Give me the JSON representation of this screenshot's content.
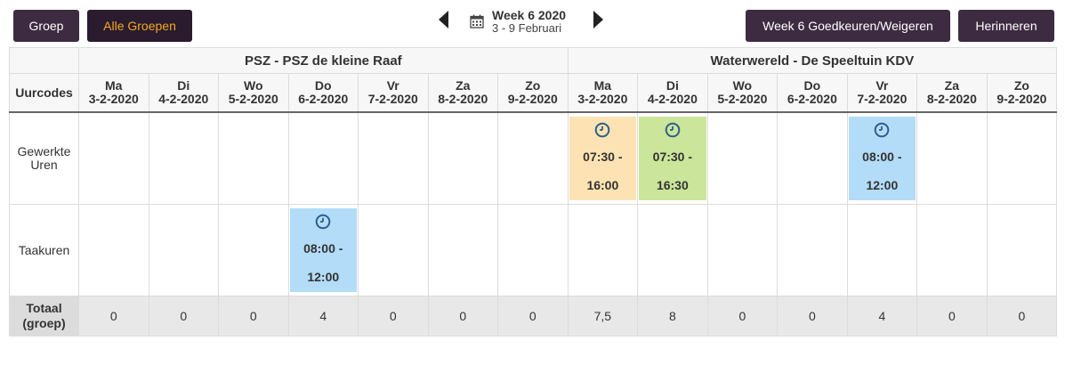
{
  "toolbar": {
    "groep": "Groep",
    "alle_groepen": "Alle Groepen",
    "goedkeuren": "Week 6 Goedkeuren/Weigeren",
    "herinneren": "Herinneren"
  },
  "week": {
    "title": "Week 6 2020",
    "range": "3 - 9 Februari"
  },
  "groups": [
    {
      "name": "PSZ - PSZ de kleine Raaf"
    },
    {
      "name": "Waterwereld - De Speeltuin KDV"
    }
  ],
  "row_header": "Uurcodes",
  "days": [
    {
      "day": "Ma",
      "date": "3-2-2020"
    },
    {
      "day": "Di",
      "date": "4-2-2020"
    },
    {
      "day": "Wo",
      "date": "5-2-2020"
    },
    {
      "day": "Do",
      "date": "6-2-2020"
    },
    {
      "day": "Vr",
      "date": "7-2-2020"
    },
    {
      "day": "Za",
      "date": "8-2-2020"
    },
    {
      "day": "Zo",
      "date": "9-2-2020"
    },
    {
      "day": "Ma",
      "date": "3-2-2020"
    },
    {
      "day": "Di",
      "date": "4-2-2020"
    },
    {
      "day": "Wo",
      "date": "5-2-2020"
    },
    {
      "day": "Do",
      "date": "6-2-2020"
    },
    {
      "day": "Vr",
      "date": "7-2-2020"
    },
    {
      "day": "Za",
      "date": "8-2-2020"
    },
    {
      "day": "Zo",
      "date": "9-2-2020"
    }
  ],
  "rows": {
    "gewerkte": {
      "line1": "Gewerkte",
      "line2": "Uren"
    },
    "taakuren": {
      "label": "Taakuren"
    }
  },
  "shifts": {
    "w_ma": {
      "start": "07:30 -",
      "end": "16:00",
      "color": "#fde3b3"
    },
    "w_di": {
      "start": "07:30 -",
      "end": "16:30",
      "color": "#cbe59a"
    },
    "w_vr": {
      "start": "08:00 -",
      "end": "12:00",
      "color": "#b3dcf8"
    },
    "p_do": {
      "start": "08:00 -",
      "end": "12:00",
      "color": "#b3dcf8"
    }
  },
  "totals": {
    "label1": "Totaal",
    "label2": "(groep)",
    "values": [
      "0",
      "0",
      "0",
      "4",
      "0",
      "0",
      "0",
      "7,5",
      "8",
      "0",
      "0",
      "4",
      "0",
      "0"
    ]
  }
}
